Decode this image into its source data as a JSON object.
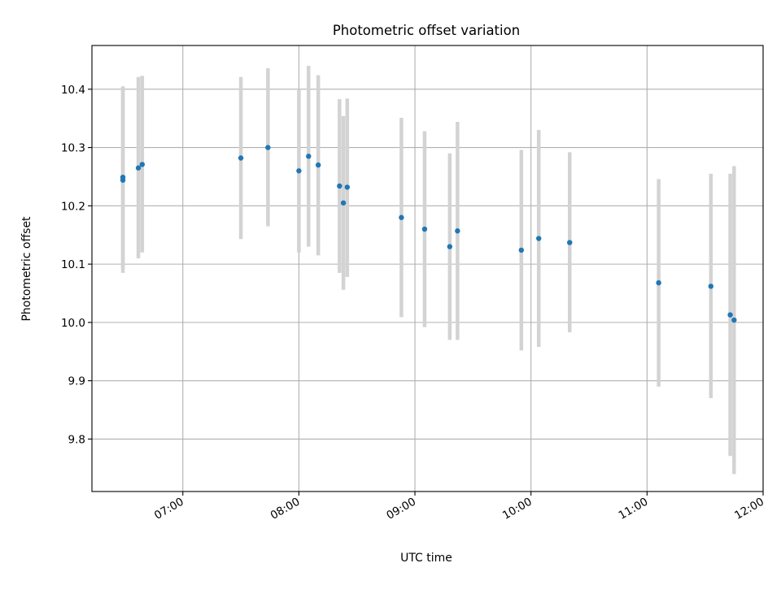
{
  "chart_data": {
    "type": "scatter",
    "title": "Photometric offset variation",
    "xlabel": "UTC time",
    "ylabel": "Photometric offset",
    "x_unit": "UTC time (HH:MM)",
    "xlim": [
      "06:13",
      "12:00"
    ],
    "ylim": [
      9.71,
      10.475
    ],
    "x_ticks": [
      "07:00",
      "08:00",
      "09:00",
      "10:00",
      "11:00",
      "12:00"
    ],
    "y_ticks": [
      "9.8",
      "9.9",
      "10.0",
      "10.1",
      "10.2",
      "10.3",
      "10.4"
    ],
    "grid": true,
    "point_color": "#1f77b4",
    "errorbar_color": "#d3d3d3",
    "series": [
      {
        "points": [
          {
            "x": "06:29",
            "y": 10.249,
            "lo": 10.093,
            "hi": 10.405
          },
          {
            "x": "06:29",
            "y": 10.244,
            "lo": 10.085,
            "hi": 10.403
          },
          {
            "x": "06:37",
            "y": 10.265,
            "lo": 10.11,
            "hi": 10.421
          },
          {
            "x": "06:39",
            "y": 10.271,
            "lo": 10.12,
            "hi": 10.423
          },
          {
            "x": "07:30",
            "y": 10.282,
            "lo": 10.143,
            "hi": 10.421
          },
          {
            "x": "07:44",
            "y": 10.3,
            "lo": 10.165,
            "hi": 10.436
          },
          {
            "x": "08:00",
            "y": 10.26,
            "lo": 10.12,
            "hi": 10.4
          },
          {
            "x": "08:05",
            "y": 10.285,
            "lo": 10.13,
            "hi": 10.44
          },
          {
            "x": "08:10",
            "y": 10.27,
            "lo": 10.115,
            "hi": 10.424
          },
          {
            "x": "08:21",
            "y": 10.234,
            "lo": 10.085,
            "hi": 10.383
          },
          {
            "x": "08:23",
            "y": 10.205,
            "lo": 10.056,
            "hi": 10.354
          },
          {
            "x": "08:25",
            "y": 10.232,
            "lo": 10.078,
            "hi": 10.384
          },
          {
            "x": "08:53",
            "y": 10.18,
            "lo": 10.009,
            "hi": 10.351
          },
          {
            "x": "09:05",
            "y": 10.16,
            "lo": 9.992,
            "hi": 10.328
          },
          {
            "x": "09:18",
            "y": 10.13,
            "lo": 9.97,
            "hi": 10.29
          },
          {
            "x": "09:22",
            "y": 10.157,
            "lo": 9.97,
            "hi": 10.344
          },
          {
            "x": "09:55",
            "y": 10.124,
            "lo": 9.952,
            "hi": 10.296
          },
          {
            "x": "10:04",
            "y": 10.144,
            "lo": 9.958,
            "hi": 10.33
          },
          {
            "x": "10:20",
            "y": 10.137,
            "lo": 9.983,
            "hi": 10.292
          },
          {
            "x": "11:06",
            "y": 10.068,
            "lo": 9.89,
            "hi": 10.246
          },
          {
            "x": "11:33",
            "y": 10.062,
            "lo": 9.87,
            "hi": 10.255
          },
          {
            "x": "11:43",
            "y": 10.013,
            "lo": 9.771,
            "hi": 10.255
          },
          {
            "x": "11:45",
            "y": 10.004,
            "lo": 9.74,
            "hi": 10.268
          }
        ]
      }
    ]
  }
}
